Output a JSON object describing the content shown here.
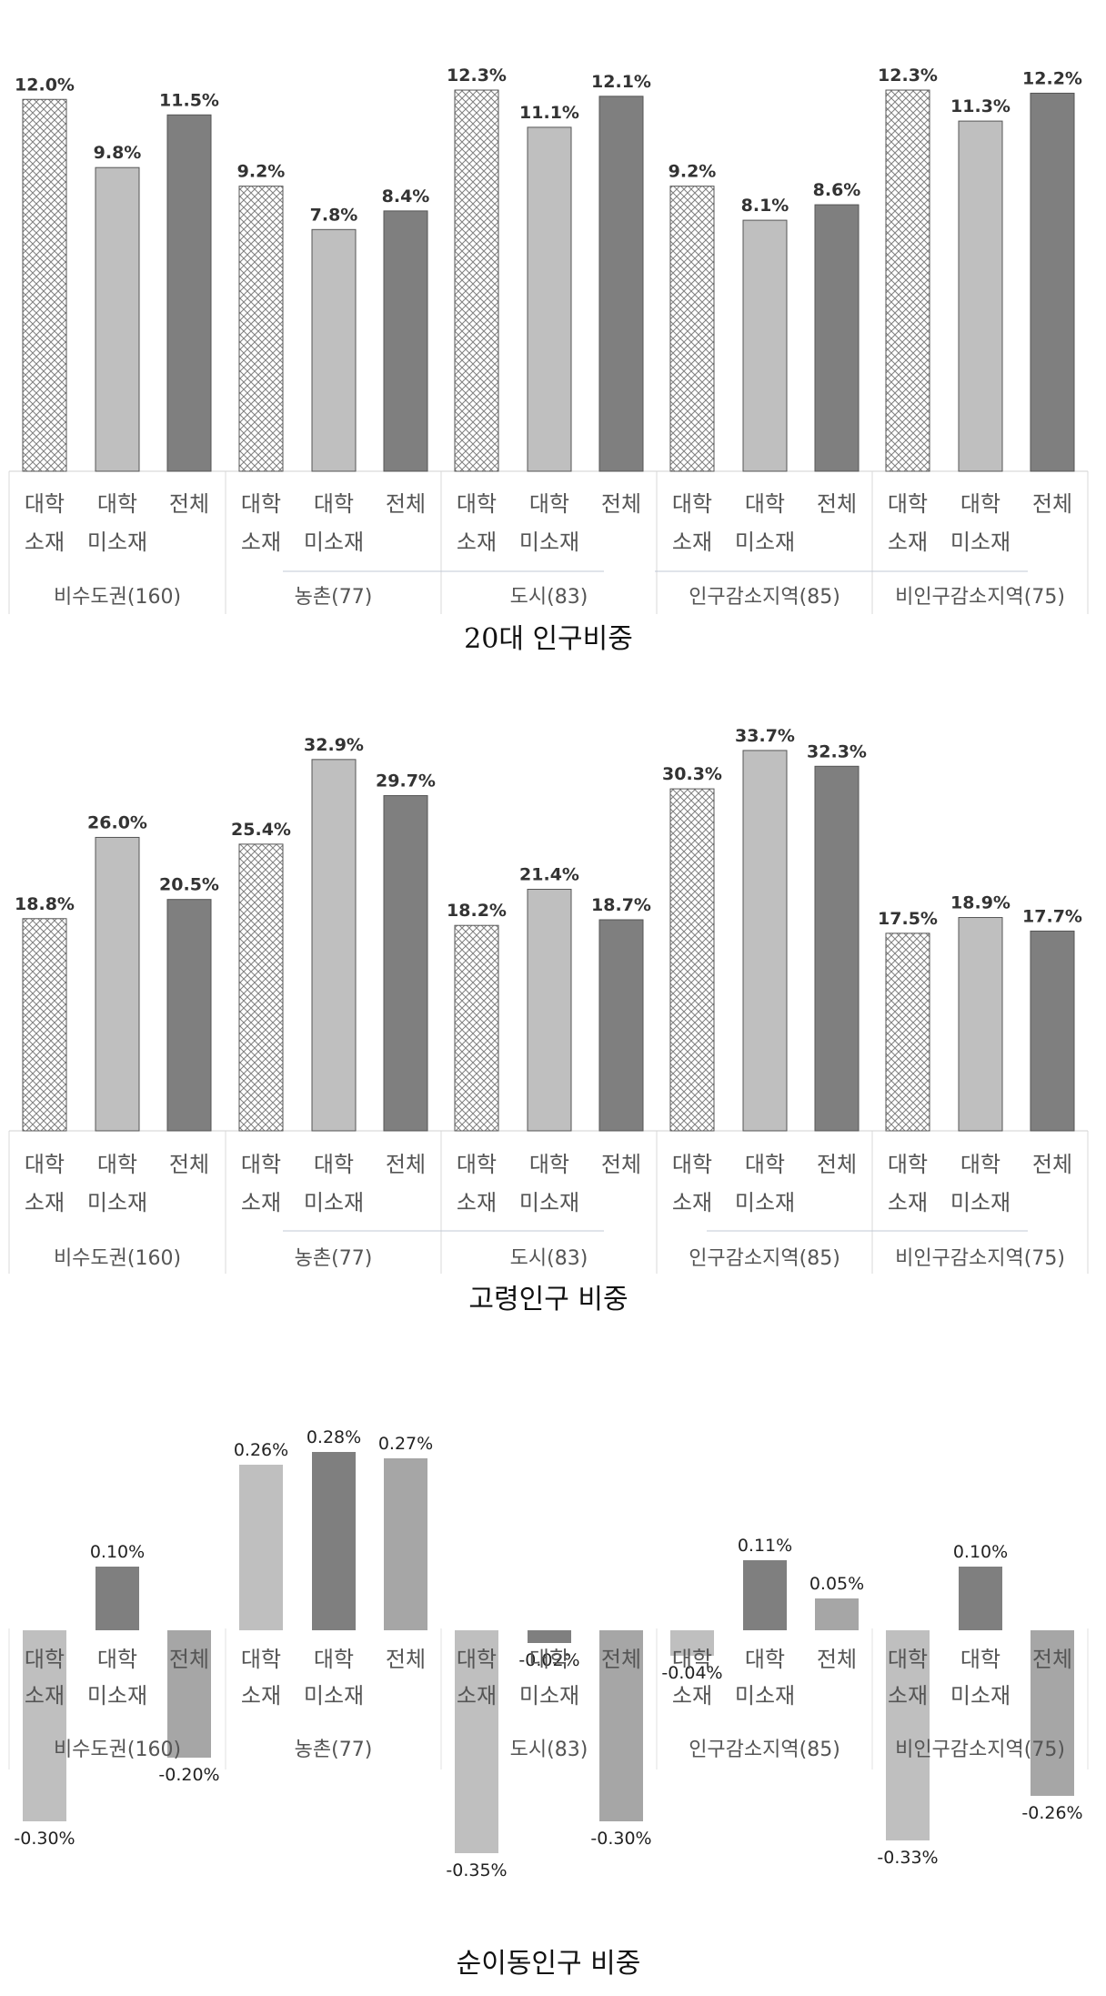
{
  "chart_data": [
    {
      "type": "bar",
      "title": "20대 인구비중",
      "groups": [
        "비수도권(160)",
        "농촌(77)",
        "도시(83)",
        "인구감소지역(85)",
        "비인구감소지역(75)"
      ],
      "categories": [
        [
          "대학",
          "소재"
        ],
        [
          "대학",
          "미소재"
        ],
        [
          "전체"
        ]
      ],
      "series": [
        {
          "values": [
            12.0,
            9.2,
            12.3,
            9.2,
            12.3
          ]
        },
        {
          "values": [
            9.8,
            7.8,
            11.1,
            8.1,
            11.3
          ]
        },
        {
          "values": [
            11.5,
            8.4,
            12.1,
            8.6,
            12.2
          ]
        }
      ],
      "labels": [
        [
          "12.0%",
          "9.8%",
          "11.5%"
        ],
        [
          "9.2%",
          "7.8%",
          "8.4%"
        ],
        [
          "12.3%",
          "11.1%",
          "12.1%"
        ],
        [
          "9.2%",
          "8.1%",
          "8.6%"
        ],
        [
          "12.3%",
          "11.3%",
          "12.2%"
        ]
      ],
      "ylim": [
        0,
        12.8
      ],
      "colors": [
        "#ffffff",
        "#bfbfbf",
        "#7f7f7f"
      ],
      "fill_pattern": [
        "crosshatch",
        "solid",
        "solid"
      ]
    },
    {
      "type": "bar",
      "title": "고령인구 비중",
      "groups": [
        "비수도권(160)",
        "농촌(77)",
        "도시(83)",
        "인구감소지역(85)",
        "비인구감소지역(75)"
      ],
      "categories": [
        [
          "대학",
          "소재"
        ],
        [
          "대학",
          "미소재"
        ],
        [
          "전체"
        ]
      ],
      "series": [
        {
          "values": [
            18.8,
            25.4,
            18.2,
            30.3,
            17.5
          ]
        },
        {
          "values": [
            26.0,
            32.9,
            21.4,
            33.7,
            18.9
          ]
        },
        {
          "values": [
            20.5,
            29.7,
            18.7,
            32.3,
            17.7
          ]
        }
      ],
      "labels": [
        [
          "18.8%",
          "26.0%",
          "20.5%"
        ],
        [
          "25.4%",
          "32.9%",
          "29.7%"
        ],
        [
          "18.2%",
          "21.4%",
          "18.7%"
        ],
        [
          "30.3%",
          "33.7%",
          "32.3%"
        ],
        [
          "17.5%",
          "18.9%",
          "17.7%"
        ]
      ],
      "ylim": [
        0,
        34.5
      ],
      "colors": [
        "#ffffff",
        "#bfbfbf",
        "#7f7f7f"
      ],
      "fill_pattern": [
        "crosshatch",
        "solid",
        "solid"
      ]
    },
    {
      "type": "bar",
      "title": "순이동인구 비중",
      "groups": [
        "비수도권(160)",
        "농촌(77)",
        "도시(83)",
        "인구감소지역(85)",
        "비인구감소지역(75)"
      ],
      "categories": [
        [
          "대학",
          "소재"
        ],
        [
          "대학",
          "미소재"
        ],
        [
          "전체"
        ]
      ],
      "series": [
        {
          "values": [
            -0.3,
            0.26,
            -0.35,
            -0.04,
            -0.33
          ]
        },
        {
          "values": [
            0.1,
            0.28,
            -0.02,
            0.11,
            0.1
          ]
        },
        {
          "values": [
            -0.2,
            0.27,
            -0.3,
            0.05,
            -0.26
          ]
        }
      ],
      "labels": [
        [
          "-0.30%",
          "0.10%",
          "-0.20%"
        ],
        [
          "0.26%",
          "0.28%",
          "0.27%"
        ],
        [
          "-0.35%",
          "-0.02%",
          "-0.30%"
        ],
        [
          "-0.04%",
          "0.11%",
          "0.05%"
        ],
        [
          "-0.33%",
          "0.10%",
          "-0.26%"
        ]
      ],
      "ylim": [
        -0.35,
        0.28
      ],
      "colors": [
        "#bfbfbf",
        "#7f7f7f",
        "#a6a6a6"
      ],
      "fill_pattern": [
        "solid",
        "solid",
        "solid"
      ]
    }
  ]
}
